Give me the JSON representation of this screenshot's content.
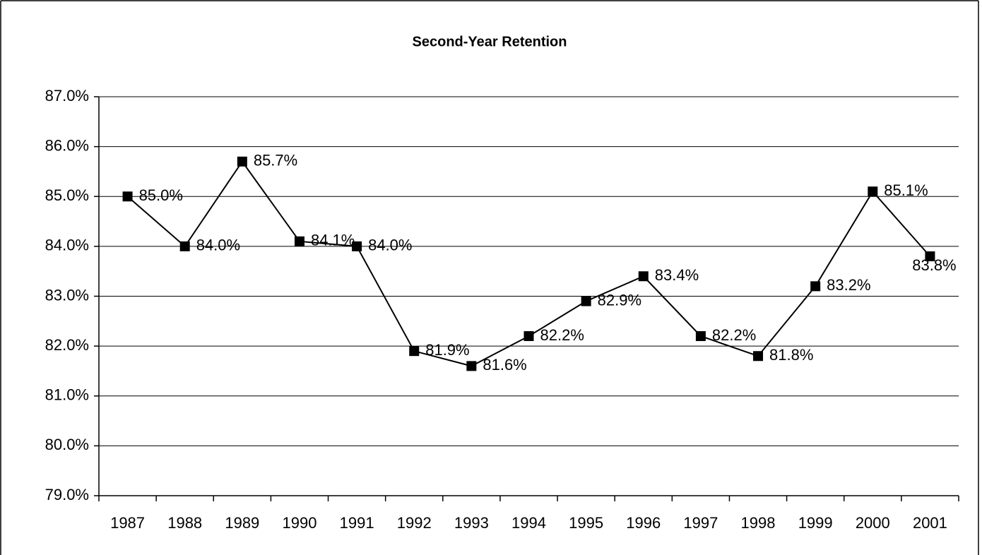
{
  "chart_data": {
    "type": "line",
    "title": "Second-Year Retention",
    "categories": [
      "1987",
      "1988",
      "1989",
      "1990",
      "1991",
      "1992",
      "1993",
      "1994",
      "1995",
      "1996",
      "1997",
      "1998",
      "1999",
      "2000",
      "2001"
    ],
    "values": [
      85.0,
      84.0,
      85.7,
      84.1,
      84.0,
      81.9,
      81.6,
      82.2,
      82.9,
      83.4,
      82.2,
      81.8,
      83.2,
      85.1,
      83.8
    ],
    "value_labels": [
      "85.0%",
      "84.0%",
      "85.7%",
      "84.1%",
      "84.0%",
      "81.9%",
      "81.6%",
      "82.2%",
      "82.9%",
      "83.4%",
      "82.2%",
      "81.8%",
      "83.2%",
      "85.1%",
      "83.8%"
    ],
    "color": "#000000",
    "ylim": [
      79,
      87
    ],
    "yticks": [
      {
        "value": 79,
        "label": "79.0%"
      },
      {
        "value": 80,
        "label": "80.0%"
      },
      {
        "value": 81,
        "label": "81.0%"
      },
      {
        "value": 82,
        "label": "82.0%"
      },
      {
        "value": 83,
        "label": "83.0%"
      },
      {
        "value": 84,
        "label": "84.0%"
      },
      {
        "value": 85,
        "label": "85.0%"
      },
      {
        "value": 86,
        "label": "86.0%"
      },
      {
        "value": 87,
        "label": "87.0%"
      }
    ],
    "grid": true
  }
}
